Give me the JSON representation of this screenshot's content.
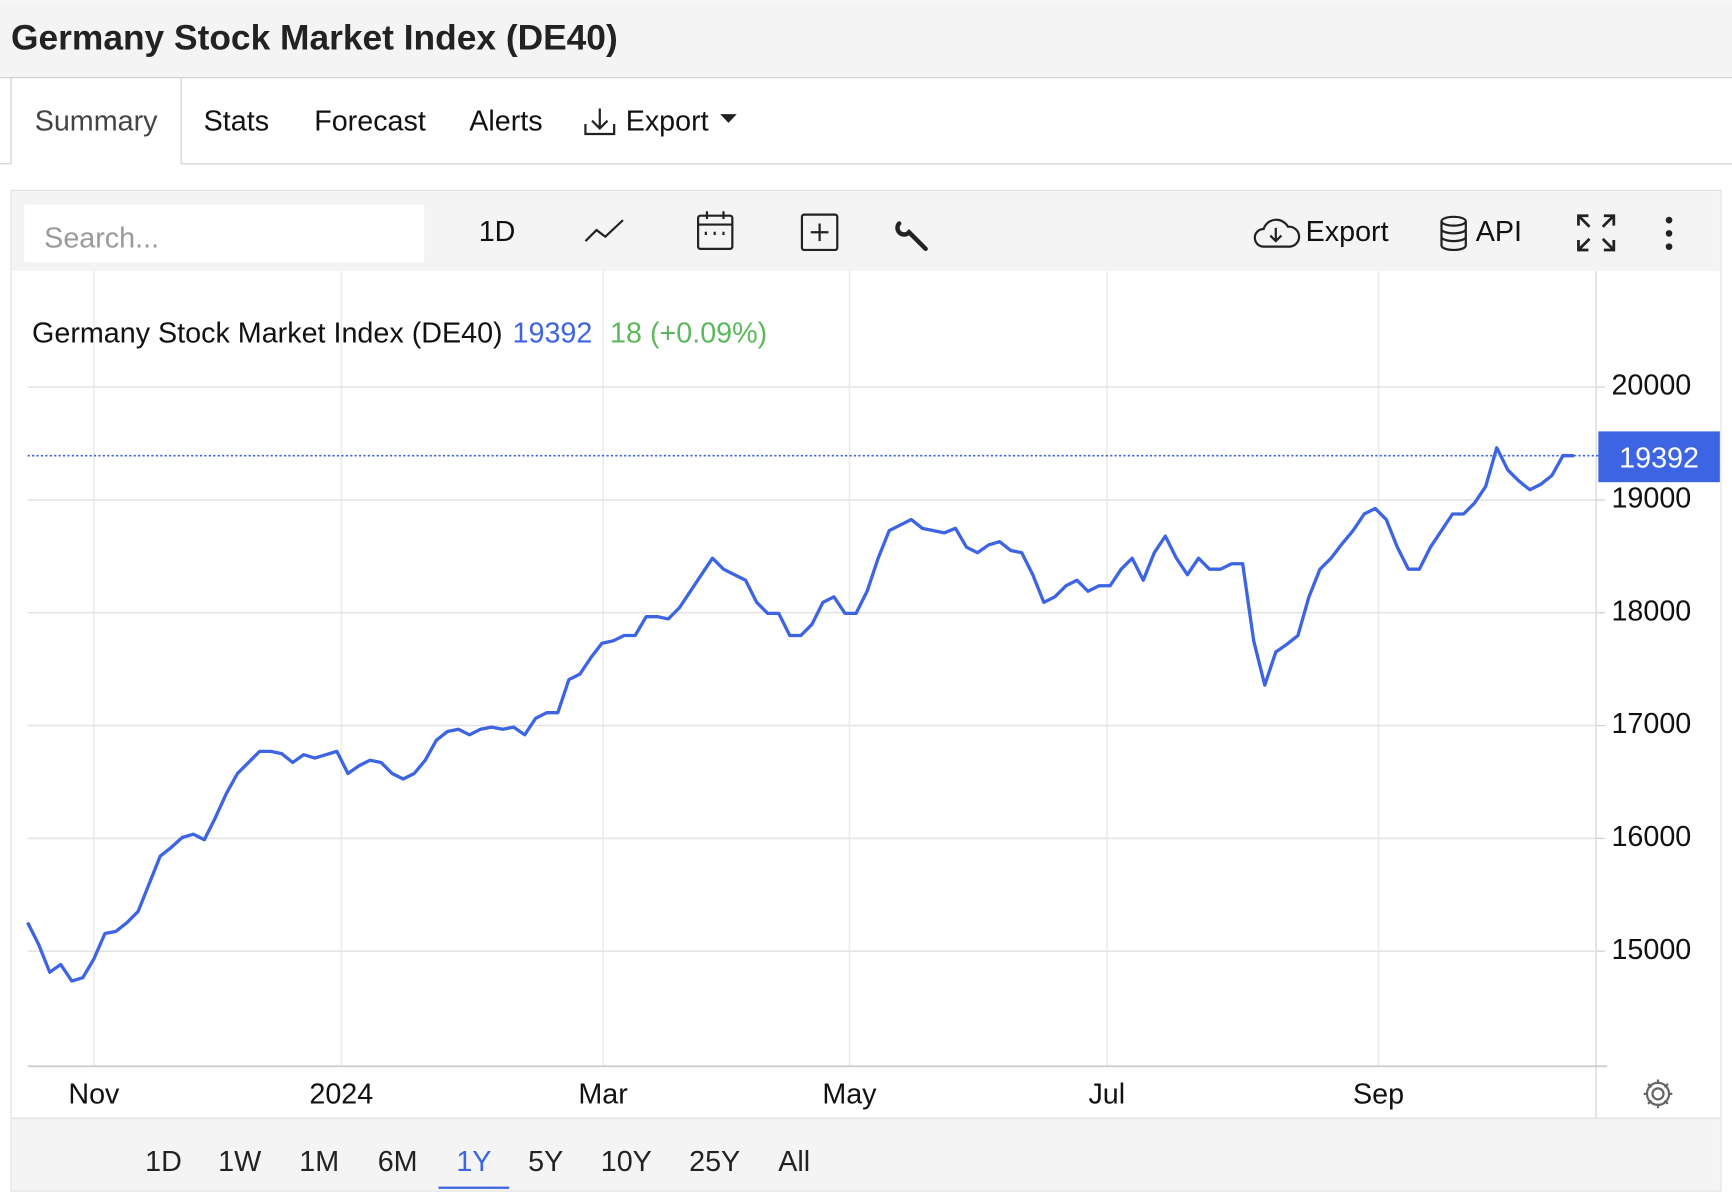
{
  "ui": {
    "title": "Germany Stock Market Index (DE40)",
    "tabs": [
      "Summary",
      "Stats",
      "Forecast",
      "Alerts",
      "Export"
    ],
    "search_placeholder": "Search...",
    "toolbar": {
      "interval": "1D",
      "export": "Export",
      "api": "API"
    },
    "ranges": [
      "1D",
      "1W",
      "1M",
      "6M",
      "1Y",
      "5Y",
      "10Y",
      "25Y",
      "All"
    ],
    "active_range": "1Y"
  },
  "chart_data": {
    "type": "line",
    "series": [
      {
        "name": "Germany Stock Market Index (DE40)",
        "color": "#3c64e3",
        "values": [
          15254,
          15059,
          14814,
          14882,
          14736,
          14765,
          14932,
          15157,
          15176,
          15254,
          15352,
          15597,
          15842,
          15920,
          16008,
          16037,
          15988,
          16184,
          16399,
          16575,
          16673,
          16771,
          16771,
          16751,
          16673,
          16742,
          16712,
          16742,
          16771,
          16575,
          16644,
          16693,
          16673,
          16575,
          16526,
          16575,
          16693,
          16869,
          16947,
          16967,
          16918,
          16967,
          16986,
          16967,
          16986,
          16918,
          17065,
          17114,
          17114,
          17407,
          17456,
          17603,
          17730,
          17750,
          17798,
          17798,
          17965,
          17965,
          17945,
          18043,
          18190,
          18337,
          18483,
          18386,
          18337,
          18288,
          18092,
          17994,
          17994,
          17798,
          17798,
          17896,
          18092,
          18141,
          17994,
          17994,
          18190,
          18483,
          18728,
          18777,
          18826,
          18748,
          18728,
          18708,
          18748,
          18581,
          18532,
          18601,
          18630,
          18552,
          18532,
          18337,
          18092,
          18141,
          18239,
          18288,
          18190,
          18239,
          18239,
          18386,
          18483,
          18288,
          18532,
          18679,
          18483,
          18337,
          18483,
          18386,
          18386,
          18434,
          18434,
          17750,
          17358,
          17652,
          17720,
          17798,
          18141,
          18386,
          18483,
          18611,
          18728,
          18875,
          18924,
          18826,
          18581,
          18386,
          18386,
          18581,
          18728,
          18875,
          18875,
          18973,
          19119,
          19462,
          19266,
          19168,
          19090,
          19139,
          19217,
          19393,
          19392
        ]
      }
    ],
    "last_price": 19392,
    "change": "18 (+0.09%)",
    "change_color": "#5cb85c",
    "xlim": [
      0,
      140
    ],
    "xticks": [
      {
        "value": 6,
        "label": "Nov"
      },
      {
        "value": 28.4,
        "label": "2024"
      },
      {
        "value": 52.1,
        "label": "Mar"
      },
      {
        "value": 74.4,
        "label": "May"
      },
      {
        "value": 97.7,
        "label": "Jul"
      },
      {
        "value": 122.3,
        "label": "Sep"
      }
    ],
    "ylim": [
      14000,
      21000
    ],
    "yticks": [
      15000,
      16000,
      17000,
      18000,
      19000,
      20000
    ],
    "grid": true
  }
}
